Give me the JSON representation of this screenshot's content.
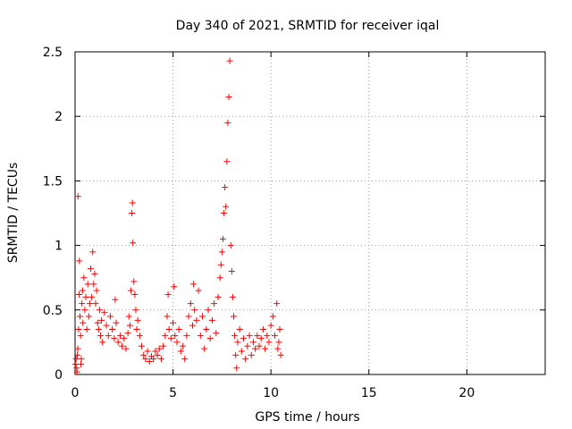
{
  "chart_data": {
    "type": "scatter",
    "title": "Day 340 of 2021, SRMTID for receiver iqal",
    "xlabel": "GPS time / hours",
    "ylabel": "SRMTID / TECUs",
    "xlim": [
      0,
      24
    ],
    "ylim": [
      0,
      2.5
    ],
    "xticks": [
      0,
      5,
      10,
      15,
      20
    ],
    "xtick_labels": [
      "0",
      "5",
      "10",
      "15",
      "20"
    ],
    "yticks": [
      0,
      0.5,
      1,
      1.5,
      2,
      2.5
    ],
    "ytick_labels": [
      "0",
      "0.5",
      "1",
      "1.5",
      "2",
      "2.5"
    ],
    "grid": true,
    "marker": "+",
    "series": [
      {
        "name": "SRMTID",
        "color": "#ff0000",
        "points": [
          [
            0.02,
            0.08
          ],
          [
            0.05,
            0.12
          ],
          [
            0.08,
            0.05
          ],
          [
            0.1,
            0.02
          ],
          [
            0.12,
            0.15
          ],
          [
            0.14,
            0.2
          ],
          [
            0.15,
            1.38
          ],
          [
            0.18,
            0.35
          ],
          [
            0.2,
            0.62
          ],
          [
            0.22,
            0.88
          ],
          [
            0.25,
            0.45
          ],
          [
            0.28,
            0.3
          ],
          [
            0.3,
            0.08
          ],
          [
            0.32,
            0.12
          ],
          [
            0.35,
            0.55
          ],
          [
            0.38,
            0.65
          ],
          [
            0.4,
            0.4
          ],
          [
            0.45,
            0.75
          ],
          [
            0.5,
            0.5
          ],
          [
            0.55,
            0.6
          ],
          [
            0.6,
            0.35
          ],
          [
            0.65,
            0.7
          ],
          [
            0.7,
            0.45
          ],
          [
            0.75,
            0.55
          ],
          [
            0.8,
            0.82
          ],
          [
            0.85,
            0.6
          ],
          [
            0.9,
            0.95
          ],
          [
            0.95,
            0.7
          ],
          [
            1.0,
            0.78
          ],
          [
            1.05,
            0.55
          ],
          [
            1.1,
            0.65
          ],
          [
            1.15,
            0.4
          ],
          [
            1.2,
            0.35
          ],
          [
            1.25,
            0.5
          ],
          [
            1.3,
            0.3
          ],
          [
            1.35,
            0.42
          ],
          [
            1.4,
            0.25
          ],
          [
            1.5,
            0.48
          ],
          [
            1.6,
            0.38
          ],
          [
            1.7,
            0.3
          ],
          [
            1.8,
            0.45
          ],
          [
            1.9,
            0.35
          ],
          [
            2.0,
            0.28
          ],
          [
            2.05,
            0.58
          ],
          [
            2.1,
            0.4
          ],
          [
            2.2,
            0.25
          ],
          [
            2.3,
            0.3
          ],
          [
            2.4,
            0.22
          ],
          [
            2.5,
            0.28
          ],
          [
            2.6,
            0.2
          ],
          [
            2.7,
            0.32
          ],
          [
            2.75,
            0.45
          ],
          [
            2.8,
            0.38
          ],
          [
            2.85,
            0.65
          ],
          [
            2.9,
            1.25
          ],
          [
            2.93,
            1.33
          ],
          [
            2.95,
            1.02
          ],
          [
            3.0,
            0.72
          ],
          [
            3.05,
            0.62
          ],
          [
            3.1,
            0.5
          ],
          [
            3.15,
            0.35
          ],
          [
            3.2,
            0.42
          ],
          [
            3.3,
            0.3
          ],
          [
            3.4,
            0.22
          ],
          [
            3.5,
            0.15
          ],
          [
            3.6,
            0.12
          ],
          [
            3.7,
            0.18
          ],
          [
            3.8,
            0.1
          ],
          [
            3.9,
            0.14
          ],
          [
            4.0,
            0.12
          ],
          [
            4.1,
            0.18
          ],
          [
            4.2,
            0.15
          ],
          [
            4.3,
            0.2
          ],
          [
            4.4,
            0.12
          ],
          [
            4.5,
            0.22
          ],
          [
            4.6,
            0.3
          ],
          [
            4.7,
            0.45
          ],
          [
            4.75,
            0.62
          ],
          [
            4.8,
            0.35
          ],
          [
            4.9,
            0.28
          ],
          [
            5.0,
            0.4
          ],
          [
            5.05,
            0.68
          ],
          [
            5.1,
            0.3
          ],
          [
            5.2,
            0.25
          ],
          [
            5.3,
            0.35
          ],
          [
            5.4,
            0.18
          ],
          [
            5.5,
            0.22
          ],
          [
            5.6,
            0.12
          ],
          [
            5.7,
            0.3
          ],
          [
            5.8,
            0.45
          ],
          [
            5.9,
            0.55
          ],
          [
            6.0,
            0.38
          ],
          [
            6.05,
            0.7
          ],
          [
            6.1,
            0.5
          ],
          [
            6.2,
            0.42
          ],
          [
            6.3,
            0.65
          ],
          [
            6.4,
            0.3
          ],
          [
            6.5,
            0.45
          ],
          [
            6.6,
            0.2
          ],
          [
            6.7,
            0.35
          ],
          [
            6.8,
            0.5
          ],
          [
            6.9,
            0.28
          ],
          [
            7.0,
            0.42
          ],
          [
            7.1,
            0.55
          ],
          [
            7.2,
            0.32
          ],
          [
            7.3,
            0.6
          ],
          [
            7.4,
            0.75
          ],
          [
            7.45,
            0.85
          ],
          [
            7.5,
            0.95
          ],
          [
            7.55,
            1.05
          ],
          [
            7.6,
            1.25
          ],
          [
            7.65,
            1.45
          ],
          [
            7.7,
            1.3
          ],
          [
            7.75,
            1.65
          ],
          [
            7.8,
            1.95
          ],
          [
            7.85,
            2.15
          ],
          [
            7.9,
            2.43
          ],
          [
            7.95,
            1.0
          ],
          [
            8.0,
            0.8
          ],
          [
            8.05,
            0.6
          ],
          [
            8.1,
            0.45
          ],
          [
            8.15,
            0.3
          ],
          [
            8.2,
            0.15
          ],
          [
            8.25,
            0.05
          ],
          [
            8.3,
            0.25
          ],
          [
            8.4,
            0.35
          ],
          [
            8.5,
            0.18
          ],
          [
            8.6,
            0.28
          ],
          [
            8.7,
            0.12
          ],
          [
            8.8,
            0.22
          ],
          [
            8.9,
            0.3
          ],
          [
            9.0,
            0.15
          ],
          [
            9.1,
            0.25
          ],
          [
            9.2,
            0.2
          ],
          [
            9.3,
            0.3
          ],
          [
            9.4,
            0.22
          ],
          [
            9.5,
            0.28
          ],
          [
            9.6,
            0.35
          ],
          [
            9.7,
            0.2
          ],
          [
            9.8,
            0.3
          ],
          [
            9.9,
            0.25
          ],
          [
            10.0,
            0.38
          ],
          [
            10.1,
            0.45
          ],
          [
            10.2,
            0.3
          ],
          [
            10.3,
            0.55
          ],
          [
            10.35,
            0.2
          ],
          [
            10.4,
            0.25
          ],
          [
            10.45,
            0.35
          ],
          [
            10.5,
            0.15
          ]
        ]
      }
    ]
  }
}
